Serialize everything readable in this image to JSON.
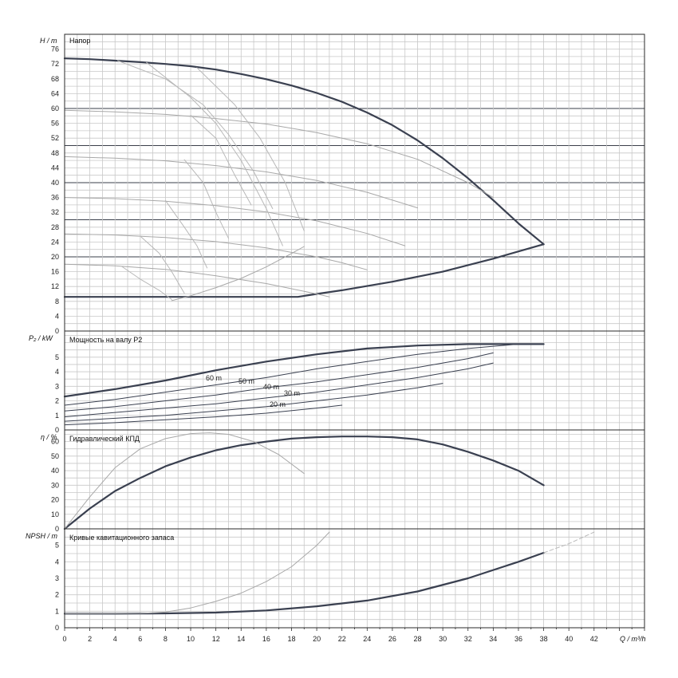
{
  "chart_data": [
    {
      "type": "line",
      "panel": "head",
      "title": "Напор",
      "ylabel": "H / m",
      "ylim": [
        0,
        80
      ],
      "xlim": [
        0,
        46
      ],
      "yticks": [
        0,
        4,
        8,
        12,
        16,
        20,
        24,
        28,
        32,
        36,
        40,
        44,
        48,
        52,
        56,
        60,
        64,
        68,
        72,
        76
      ],
      "series": [
        {
          "role": "max",
          "x": [
            0,
            2,
            4,
            6,
            8,
            10,
            12,
            14,
            16,
            18,
            20,
            22,
            24,
            26,
            28,
            30,
            32,
            34,
            36,
            38
          ],
          "y": [
            73.5,
            73.3,
            72.9,
            72.5,
            72.0,
            71.4,
            70.5,
            69.3,
            67.9,
            66.2,
            64.2,
            61.8,
            58.9,
            55.5,
            51.4,
            46.6,
            41.2,
            35.3,
            29.0,
            23.4
          ]
        },
        {
          "role": "min",
          "x": [
            0,
            4,
            8,
            12,
            16,
            18.5,
            20,
            22,
            26,
            30,
            34,
            38
          ],
          "y": [
            9.2,
            9.2,
            9.2,
            9.2,
            9.2,
            9.2,
            10.0,
            11.0,
            13.3,
            16.0,
            19.5,
            23.4
          ]
        },
        {
          "role": "speed-1",
          "x": [
            0,
            4,
            8,
            12,
            16,
            20,
            24,
            28,
            32,
            34
          ],
          "y": [
            59.5,
            59.1,
            58.4,
            57.3,
            55.8,
            53.5,
            50.5,
            46.3,
            40.0,
            36.0
          ]
        },
        {
          "role": "speed-2",
          "x": [
            0,
            4,
            8,
            12,
            16,
            20,
            24,
            28
          ],
          "y": [
            47.0,
            46.6,
            45.9,
            44.6,
            42.9,
            40.6,
            37.4,
            33.2
          ]
        },
        {
          "role": "speed-3",
          "x": [
            0,
            4,
            8,
            12,
            16,
            20,
            24,
            27
          ],
          "y": [
            36.0,
            35.7,
            35.0,
            33.8,
            32.1,
            29.7,
            26.3,
            23.0
          ]
        },
        {
          "role": "speed-4",
          "x": [
            0,
            4,
            8,
            12,
            16,
            20,
            22,
            24
          ],
          "y": [
            26.2,
            25.9,
            25.2,
            24.1,
            22.4,
            20.0,
            18.4,
            16.5
          ]
        },
        {
          "role": "speed-5",
          "x": [
            0,
            4,
            8,
            10,
            12,
            16,
            20,
            21
          ],
          "y": [
            18.0,
            17.6,
            16.6,
            15.8,
            14.9,
            12.8,
            10.0,
            9.2
          ]
        },
        {
          "role": "eff-1",
          "x": [
            4.2,
            8,
            11,
            13,
            15,
            16.5
          ],
          "y": [
            72.9,
            68,
            61,
            53,
            43,
            33
          ]
        },
        {
          "role": "eff-2",
          "x": [
            6.5,
            10,
            12,
            14,
            16,
            17.3
          ],
          "y": [
            72.4,
            63,
            56,
            46,
            33,
            23
          ]
        },
        {
          "role": "eff-3",
          "x": [
            10.5,
            13.5,
            15.5,
            17.5,
            19
          ],
          "y": [
            71,
            61,
            52,
            40,
            27
          ]
        },
        {
          "role": "eff-4",
          "x": [
            10,
            12,
            13.5,
            14.8
          ],
          "y": [
            58.2,
            52,
            42,
            34
          ]
        },
        {
          "role": "eff-5",
          "x": [
            9.5,
            11,
            12,
            13
          ],
          "y": [
            46.2,
            40,
            32,
            25
          ]
        },
        {
          "role": "eff-6",
          "x": [
            8,
            9.5,
            10.5,
            11.3
          ],
          "y": [
            35.2,
            28,
            23,
            17
          ]
        },
        {
          "role": "eff-7",
          "x": [
            6,
            7.5,
            8.5,
            9.5
          ],
          "y": [
            25.6,
            21,
            16,
            10.2
          ]
        },
        {
          "role": "eff-8",
          "x": [
            4.5,
            6,
            7.5,
            8.5
          ],
          "y": [
            17.5,
            14,
            11,
            8.5
          ]
        },
        {
          "role": "system",
          "x": [
            8.5,
            10,
            12,
            14,
            16,
            18,
            19
          ],
          "y": [
            8.2,
            9.5,
            11.7,
            14.2,
            17.3,
            20.9,
            22.8
          ]
        }
      ]
    },
    {
      "type": "line",
      "panel": "power",
      "title": "Мощность на валу P2",
      "ylabel": "P₂ / kW",
      "ylim": [
        0,
        6.8
      ],
      "yticks": [
        0,
        1,
        2,
        3,
        4,
        5
      ],
      "annotations": [
        "60 m",
        "50 m",
        "40 m",
        "30 m",
        "20 m"
      ],
      "series": [
        {
          "role": "max",
          "x": [
            0,
            4,
            8,
            12,
            16,
            20,
            24,
            28,
            32,
            36,
            38
          ],
          "y": [
            2.3,
            2.8,
            3.4,
            4.1,
            4.7,
            5.2,
            5.6,
            5.8,
            5.9,
            5.9,
            5.9
          ]
        },
        {
          "role": "speed-1",
          "x": [
            0,
            4,
            8,
            12,
            16,
            20,
            24,
            28,
            32,
            36
          ],
          "y": [
            1.7,
            2.1,
            2.6,
            3.1,
            3.6,
            4.2,
            4.7,
            5.2,
            5.6,
            5.9
          ]
        },
        {
          "role": "speed-2",
          "x": [
            0,
            4,
            8,
            12,
            16,
            20,
            24,
            28,
            32,
            34
          ],
          "y": [
            1.3,
            1.6,
            2.0,
            2.4,
            2.9,
            3.3,
            3.8,
            4.3,
            4.9,
            5.3
          ]
        },
        {
          "role": "speed-3",
          "x": [
            0,
            4,
            8,
            12,
            16,
            20,
            24,
            28,
            32,
            34
          ],
          "y": [
            0.9,
            1.2,
            1.5,
            1.8,
            2.2,
            2.6,
            3.1,
            3.6,
            4.2,
            4.6
          ]
        },
        {
          "role": "speed-4",
          "x": [
            0,
            4,
            8,
            12,
            16,
            20,
            24,
            28,
            30
          ],
          "y": [
            0.6,
            0.8,
            1.0,
            1.3,
            1.6,
            2.0,
            2.4,
            2.9,
            3.2
          ]
        },
        {
          "role": "speed-5",
          "x": [
            0,
            4,
            8,
            12,
            16,
            20,
            22
          ],
          "y": [
            0.35,
            0.5,
            0.7,
            0.9,
            1.15,
            1.5,
            1.7
          ]
        }
      ]
    },
    {
      "type": "line",
      "panel": "efficiency",
      "title": "Гидравлический КПД",
      "ylabel": "η / %",
      "ylim": [
        0,
        68
      ],
      "yticks": [
        0,
        10,
        20,
        30,
        40,
        50,
        60
      ],
      "series": [
        {
          "role": "pump",
          "x": [
            0,
            2,
            4,
            6,
            8,
            10,
            12,
            14,
            16,
            18,
            20,
            22,
            24,
            26,
            28,
            30,
            32,
            34,
            36,
            38
          ],
          "y": [
            0,
            14,
            26,
            35,
            43,
            49,
            54,
            57.5,
            60,
            62,
            63,
            63.5,
            63.5,
            63,
            61.5,
            58,
            53,
            47,
            40,
            30
          ]
        },
        {
          "role": "alt",
          "x": [
            0,
            2,
            4,
            6,
            8,
            10,
            11.5,
            13,
            15,
            17,
            19
          ],
          "y": [
            0,
            22,
            42,
            55,
            62,
            65.5,
            66,
            65,
            60,
            51,
            38
          ]
        }
      ]
    },
    {
      "type": "line",
      "panel": "npsh",
      "title": "Кривые кавитационного запаса",
      "ylabel": "NPSH / m",
      "ylim": [
        0,
        6
      ],
      "yticks": [
        0,
        1,
        2,
        3,
        4,
        5
      ],
      "series": [
        {
          "role": "pump",
          "x": [
            0,
            4,
            8,
            12,
            16,
            20,
            24,
            28,
            32,
            36,
            38
          ],
          "y": [
            0.85,
            0.85,
            0.87,
            0.92,
            1.05,
            1.3,
            1.65,
            2.2,
            3.0,
            4.0,
            4.55
          ]
        },
        {
          "role": "pump-ext",
          "x": [
            38,
            40,
            42
          ],
          "y": [
            4.55,
            5.1,
            5.8
          ]
        },
        {
          "role": "alt",
          "x": [
            0,
            6,
            8,
            10,
            12,
            14,
            16,
            18,
            20,
            21
          ],
          "y": [
            0.85,
            0.87,
            0.95,
            1.2,
            1.6,
            2.1,
            2.8,
            3.7,
            5.0,
            5.8
          ]
        }
      ]
    }
  ],
  "x_axis": {
    "label": "Q / m³/h",
    "ticks": [
      0,
      2,
      4,
      6,
      8,
      10,
      12,
      14,
      16,
      18,
      20,
      22,
      24,
      26,
      28,
      30,
      32,
      34,
      36,
      38,
      40,
      42
    ]
  }
}
